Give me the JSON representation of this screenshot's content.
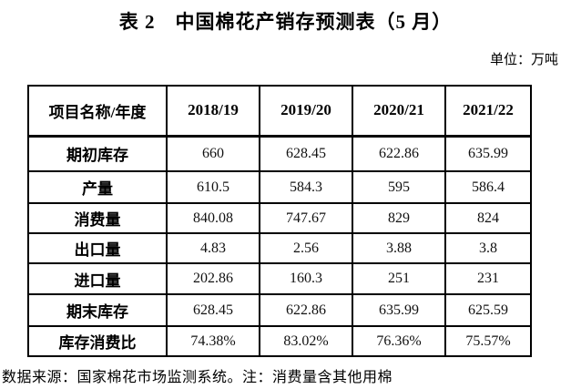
{
  "page": {
    "title": "表 2　中国棉花产销存预测表（5 月）",
    "unit_label": "单位：万吨",
    "footer_note": "数据来源：国家棉花市场监测系统。注：消费量含其他用棉"
  },
  "table": {
    "columns": [
      "项目名称/年度",
      "2018/19",
      "2019/20",
      "2020/21",
      "2021/22"
    ],
    "rows": [
      {
        "label": "期初库存",
        "values": [
          "660",
          "628.45",
          "622.86",
          "635.99"
        ]
      },
      {
        "label": "产量",
        "values": [
          "610.5",
          "584.3",
          "595",
          "586.4"
        ]
      },
      {
        "label": "消费量",
        "values": [
          "840.08",
          "747.67",
          "829",
          "824"
        ]
      },
      {
        "label": "出口量",
        "values": [
          "4.83",
          "2.56",
          "3.88",
          "3.8"
        ]
      },
      {
        "label": "进口量",
        "values": [
          "202.86",
          "160.3",
          "251",
          "231"
        ]
      },
      {
        "label": "期末库存",
        "values": [
          "628.45",
          "622.86",
          "635.99",
          "625.59"
        ]
      },
      {
        "label": "库存消费比",
        "values": [
          "74.38%",
          "83.02%",
          "76.36%",
          "75.57%"
        ]
      }
    ]
  }
}
